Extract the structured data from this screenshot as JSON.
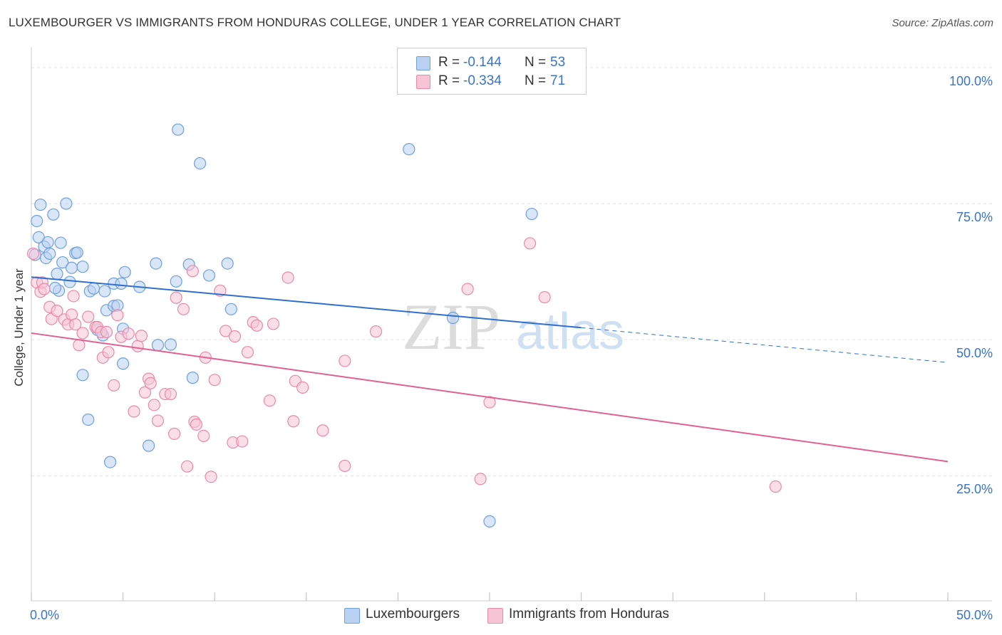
{
  "title": "LUXEMBOURGER VS IMMIGRANTS FROM HONDURAS COLLEGE, UNDER 1 YEAR CORRELATION CHART",
  "source": "Source: ZipAtlas.com",
  "watermark": {
    "zip": "ZIP",
    "atlas": "atlas"
  },
  "legend": {
    "r_label": "R =",
    "n_label": "N =",
    "rows": [
      {
        "r": "-0.144",
        "n": "53"
      },
      {
        "r": "-0.334",
        "n": "71"
      }
    ]
  },
  "chart_data": {
    "type": "scatter",
    "title": "LUXEMBOURGER VS IMMIGRANTS FROM HONDURAS COLLEGE, UNDER 1 YEAR CORRELATION CHART",
    "xlabel": "",
    "ylabel": "College, Under 1 year",
    "xlim": [
      0,
      50
    ],
    "ylim": [
      2,
      103
    ],
    "x_tick_labels": [
      "0.0%",
      "50.0%"
    ],
    "y_ticks": [
      {
        "value": 100,
        "label": "100.0%"
      },
      {
        "value": 75,
        "label": "75.0%"
      },
      {
        "value": 50,
        "label": "50.0%"
      },
      {
        "value": 25,
        "label": "25.0%"
      }
    ],
    "grid": true,
    "series": [
      {
        "name": "Luxembourgers",
        "color": "#6f9fdd",
        "fill": "#b9d1f2",
        "trend": {
          "x0": 0,
          "y0": 61.5,
          "x1": 30,
          "y1": 52.2,
          "dash_to_x": 50,
          "dash_to_y": 45.8,
          "color": "#2f6fd0"
        },
        "points": [
          [
            0.2,
            65.6
          ],
          [
            0.3,
            71.8
          ],
          [
            0.4,
            68.8
          ],
          [
            0.5,
            74.8
          ],
          [
            0.7,
            67.1
          ],
          [
            0.8,
            65.0
          ],
          [
            0.9,
            67.9
          ],
          [
            1.0,
            65.8
          ],
          [
            1.2,
            73.0
          ],
          [
            1.4,
            62.1
          ],
          [
            1.5,
            59.0
          ],
          [
            1.6,
            67.8
          ],
          [
            1.7,
            64.2
          ],
          [
            1.9,
            75.0
          ],
          [
            2.1,
            60.6
          ],
          [
            2.2,
            63.2
          ],
          [
            2.4,
            65.9
          ],
          [
            2.5,
            66.0
          ],
          [
            2.8,
            63.4
          ],
          [
            2.8,
            43.5
          ],
          [
            3.1,
            35.3
          ],
          [
            3.2,
            58.9
          ],
          [
            3.4,
            59.4
          ],
          [
            3.6,
            51.8
          ],
          [
            3.9,
            50.8
          ],
          [
            4.0,
            58.9
          ],
          [
            4.1,
            55.4
          ],
          [
            4.3,
            27.5
          ],
          [
            4.5,
            60.3
          ],
          [
            4.5,
            56.2
          ],
          [
            4.7,
            56.3
          ],
          [
            4.9,
            60.3
          ],
          [
            5.0,
            52.0
          ],
          [
            5.0,
            45.6
          ],
          [
            5.1,
            62.4
          ],
          [
            5.9,
            59.7
          ],
          [
            6.4,
            30.5
          ],
          [
            6.8,
            64.0
          ],
          [
            6.9,
            49.0
          ],
          [
            7.6,
            49.1
          ],
          [
            7.9,
            60.7
          ],
          [
            8.0,
            88.6
          ],
          [
            8.6,
            63.8
          ],
          [
            8.8,
            43.0
          ],
          [
            9.2,
            82.4
          ],
          [
            9.7,
            61.8
          ],
          [
            10.7,
            64.0
          ],
          [
            10.9,
            55.6
          ],
          [
            20.6,
            85.0
          ],
          [
            23.0,
            54.0
          ],
          [
            25.0,
            16.6
          ],
          [
            27.3,
            73.1
          ],
          [
            1.3,
            59.5
          ]
        ]
      },
      {
        "name": "Immigrants from Honduras",
        "color": "#e88aa8",
        "fill": "#f7c4d5",
        "trend": {
          "x0": 0,
          "y0": 51.2,
          "x1": 50,
          "y1": 27.6,
          "color": "#e06092"
        },
        "points": [
          [
            0.1,
            65.8
          ],
          [
            0.3,
            60.5
          ],
          [
            0.5,
            58.8
          ],
          [
            0.6,
            60.5
          ],
          [
            1.0,
            56.0
          ],
          [
            1.1,
            53.8
          ],
          [
            1.4,
            55.3
          ],
          [
            1.8,
            53.7
          ],
          [
            2.0,
            52.8
          ],
          [
            2.2,
            54.6
          ],
          [
            2.3,
            58.0
          ],
          [
            2.6,
            49.0
          ],
          [
            2.8,
            51.2
          ],
          [
            3.1,
            54.2
          ],
          [
            3.5,
            52.3
          ],
          [
            3.6,
            52.3
          ],
          [
            3.8,
            51.4
          ],
          [
            3.9,
            46.7
          ],
          [
            4.1,
            51.4
          ],
          [
            4.2,
            47.7
          ],
          [
            4.5,
            41.6
          ],
          [
            4.7,
            54.5
          ],
          [
            4.9,
            50.5
          ],
          [
            5.3,
            51.1
          ],
          [
            5.6,
            36.8
          ],
          [
            5.8,
            48.8
          ],
          [
            6.0,
            50.7
          ],
          [
            6.2,
            40.3
          ],
          [
            6.4,
            42.8
          ],
          [
            6.5,
            42.0
          ],
          [
            6.7,
            38.0
          ],
          [
            6.9,
            35.1
          ],
          [
            7.3,
            40.0
          ],
          [
            7.6,
            40.0
          ],
          [
            7.8,
            32.7
          ],
          [
            7.9,
            57.7
          ],
          [
            8.3,
            55.6
          ],
          [
            8.5,
            26.7
          ],
          [
            8.8,
            62.6
          ],
          [
            8.9,
            34.9
          ],
          [
            9.0,
            34.4
          ],
          [
            9.4,
            32.3
          ],
          [
            9.5,
            46.7
          ],
          [
            9.8,
            24.8
          ],
          [
            10.0,
            42.6
          ],
          [
            10.3,
            59.0
          ],
          [
            10.6,
            51.6
          ],
          [
            11.0,
            31.1
          ],
          [
            11.1,
            50.6
          ],
          [
            11.5,
            31.3
          ],
          [
            11.8,
            47.7
          ],
          [
            12.1,
            53.2
          ],
          [
            12.3,
            52.6
          ],
          [
            13.0,
            38.8
          ],
          [
            13.2,
            52.9
          ],
          [
            14.0,
            61.4
          ],
          [
            14.3,
            35.0
          ],
          [
            14.4,
            42.4
          ],
          [
            14.8,
            41.2
          ],
          [
            15.9,
            33.3
          ],
          [
            17.1,
            46.1
          ],
          [
            17.1,
            26.8
          ],
          [
            18.8,
            51.5
          ],
          [
            23.8,
            59.3
          ],
          [
            24.5,
            24.4
          ],
          [
            25.0,
            38.5
          ],
          [
            27.2,
            67.7
          ],
          [
            28.0,
            57.8
          ],
          [
            40.6,
            23.0
          ],
          [
            0.7,
            59.3
          ],
          [
            2.4,
            52.8
          ]
        ]
      }
    ]
  }
}
